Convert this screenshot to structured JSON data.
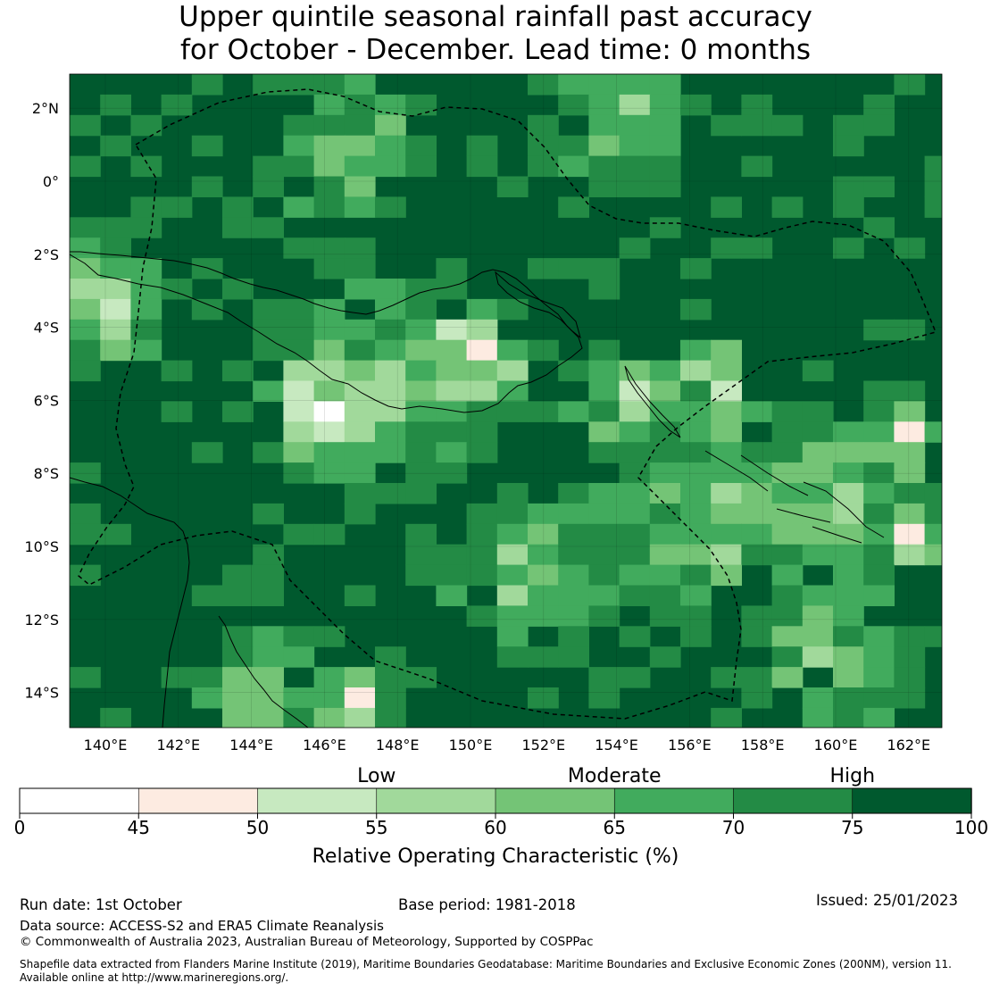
{
  "title": {
    "line1": "Upper quintile seasonal rainfall past accuracy",
    "line2": "for October - December. Lead time: 0 months"
  },
  "map": {
    "longitude_ticks": [
      "140°E",
      "142°E",
      "144°E",
      "146°E",
      "148°E",
      "150°E",
      "152°E",
      "154°E",
      "156°E",
      "158°E",
      "160°E",
      "162°E"
    ],
    "latitude_ticks": [
      "2°N",
      "0°",
      "2°S",
      "4°S",
      "6°S",
      "8°S",
      "10°S",
      "12°S",
      "14°S"
    ],
    "dominant_color": "#00592e",
    "land_outline_color": "#000000",
    "eez_boundary_style": "dashed"
  },
  "colorbar": {
    "category_labels": [
      "Low",
      "Moderate",
      "High"
    ],
    "tick_labels": [
      "0",
      "45",
      "50",
      "55",
      "60",
      "65",
      "70",
      "75",
      "100"
    ],
    "label": "Relative Operating Characteristic (%)",
    "bins": [
      {
        "range": "0-45",
        "color": "#ffffff"
      },
      {
        "range": "45-50",
        "color": "#fdebe1"
      },
      {
        "range": "50-55",
        "color": "#c7e9c0"
      },
      {
        "range": "55-60",
        "color": "#a1d99b"
      },
      {
        "range": "60-65",
        "color": "#74c476"
      },
      {
        "range": "65-70",
        "color": "#41ab5d"
      },
      {
        "range": "70-75",
        "color": "#238b45"
      },
      {
        "range": "75-100",
        "color": "#00592e"
      }
    ]
  },
  "footer": {
    "run_date": "Run date: 1st October",
    "base_period": "Base period: 1981-2018",
    "issued": "Issued: 25/01/2023",
    "data_source": "Data source: ACCESS-S2 and ERA5 Climate Reanalysis",
    "copyright": "© Commonwealth of Australia 2023, Australian Bureau of Meteorology, Supported by COSPPac",
    "shapefile_line1": "Shapefile data extracted from Flanders Marine Institute (2019), Maritime Boundaries Geodatabase: Maritime Boundaries and Exclusive Economic Zones (200NM), version 11.",
    "shapefile_line2": "Available online at http://www.marineregions.org/."
  }
}
